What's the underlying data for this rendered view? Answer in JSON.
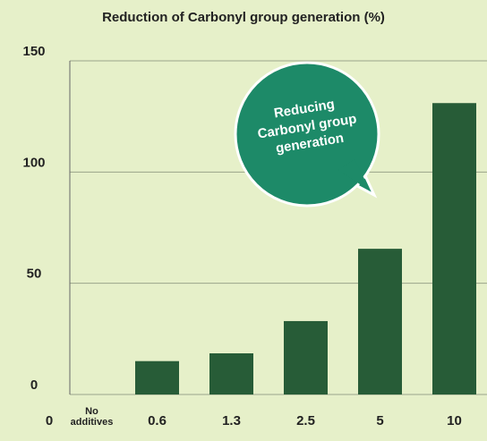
{
  "chart_data": {
    "type": "bar",
    "title": "Reduction of Carbonyl group generation (%)",
    "x_origin_label": "0",
    "categories": [
      "No additives",
      "0.6",
      "1.3",
      "2.5",
      "5",
      "10"
    ],
    "values": [
      0,
      15,
      18.5,
      33,
      65.5,
      131
    ],
    "color": "#275c37",
    "ylim": [
      0,
      150
    ],
    "yticks": [
      0,
      50,
      100,
      150
    ],
    "grid": true,
    "annotation": "Reducing Carbonyl group generation",
    "annotation_color": "#1d8a68"
  }
}
